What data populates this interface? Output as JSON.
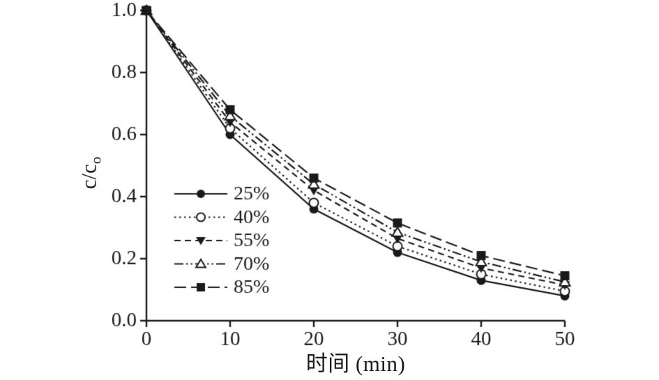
{
  "chart_data": {
    "type": "line",
    "x": [
      0,
      10,
      20,
      30,
      40,
      50
    ],
    "series": [
      {
        "name": "25%",
        "values": [
          1.0,
          0.6,
          0.36,
          0.22,
          0.13,
          0.08
        ],
        "line": "solid",
        "marker": "circle-filled"
      },
      {
        "name": "40%",
        "values": [
          1.0,
          0.62,
          0.38,
          0.24,
          0.15,
          0.095
        ],
        "line": "dotted",
        "marker": "circle-open"
      },
      {
        "name": "55%",
        "values": [
          1.0,
          0.64,
          0.42,
          0.265,
          0.17,
          0.115
        ],
        "line": "dashed",
        "marker": "triangle-down-filled"
      },
      {
        "name": "70%",
        "values": [
          1.0,
          0.66,
          0.44,
          0.285,
          0.19,
          0.125
        ],
        "line": "dash-dot-dot",
        "marker": "triangle-up-open"
      },
      {
        "name": "85%",
        "values": [
          1.0,
          0.68,
          0.46,
          0.315,
          0.21,
          0.145
        ],
        "line": "long-dash",
        "marker": "square-filled"
      }
    ],
    "title": "",
    "xlabel": "时间 (min)",
    "ylabel_main": "c/c",
    "ylabel_sub": "o",
    "xlim": [
      0,
      50
    ],
    "ylim": [
      0.0,
      1.0
    ],
    "xticks": [
      0,
      10,
      20,
      30,
      40,
      50
    ],
    "yticks": [
      0.0,
      0.2,
      0.4,
      0.6,
      0.8,
      1.0
    ],
    "grid": false,
    "legend_position": "lower-left-inside",
    "color": "#1a1a1a",
    "background": "#ffffff"
  }
}
